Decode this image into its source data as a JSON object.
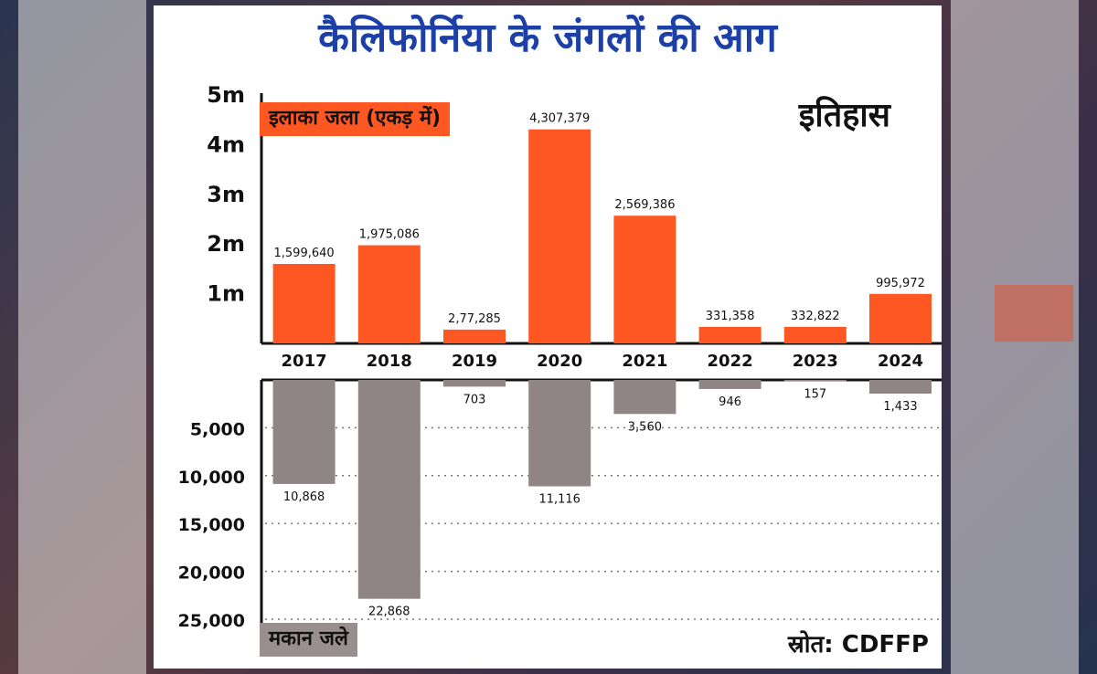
{
  "chart_data": {
    "type": "bar",
    "title": "कैलिफोर्निया के जंगलों की आग",
    "subtitle": "इतिहास",
    "source": "स्रोत: CDFFP",
    "categories": [
      "2017",
      "2018",
      "2019",
      "2020",
      "2021",
      "2022",
      "2023",
      "2024"
    ],
    "series": [
      {
        "name": "इलाका जला (एकड़ में)",
        "values": [
          1599640,
          1975086,
          277285,
          4307379,
          2569386,
          331358,
          332822,
          995972
        ],
        "labels": [
          "1,599,640",
          "1,975,086",
          "2,77,285",
          "4,307,379",
          "2,569,386",
          "331,358",
          "332,822",
          "995,972"
        ],
        "color": "#ff5722",
        "ylim": [
          0,
          5000000
        ],
        "ticks": [
          {
            "value": 1000000,
            "label": "1m"
          },
          {
            "value": 2000000,
            "label": "2m"
          },
          {
            "value": 3000000,
            "label": "3m"
          },
          {
            "value": 4000000,
            "label": "4m"
          },
          {
            "value": 5000000,
            "label": "5m"
          }
        ]
      },
      {
        "name": "मकान जले",
        "values": [
          10868,
          22868,
          703,
          11116,
          3560,
          946,
          157,
          1433
        ],
        "labels": [
          "10,868",
          "22,868",
          "703",
          "11,116",
          "3,560",
          "946",
          "157",
          "1,433"
        ],
        "color": "#8f8585",
        "ylim": [
          0,
          25000
        ],
        "ticks": [
          {
            "value": 5000,
            "label": "5,000"
          },
          {
            "value": 10000,
            "label": "10,000"
          },
          {
            "value": 15000,
            "label": "15,000"
          },
          {
            "value": 20000,
            "label": "20,000"
          },
          {
            "value": 25000,
            "label": "25,000"
          }
        ]
      }
    ]
  }
}
